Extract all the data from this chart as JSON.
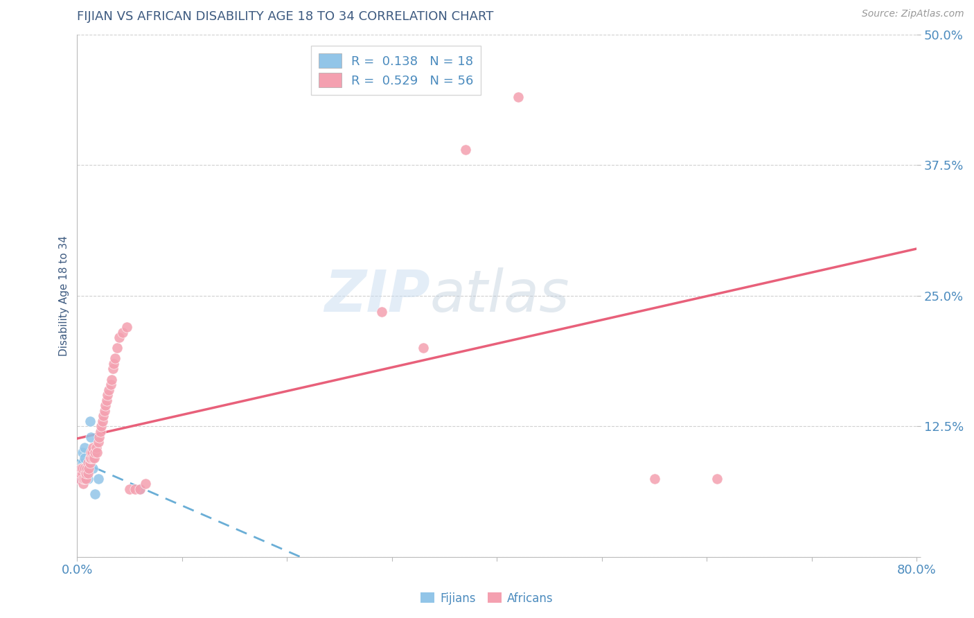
{
  "title": "FIJIAN VS AFRICAN DISABILITY AGE 18 TO 34 CORRELATION CHART",
  "source_text": "Source: ZipAtlas.com",
  "ylabel": "Disability Age 18 to 34",
  "xlim": [
    0.0,
    0.8
  ],
  "ylim": [
    0.0,
    0.5
  ],
  "yticks": [
    0.0,
    0.125,
    0.25,
    0.375,
    0.5
  ],
  "ytick_labels": [
    "",
    "12.5%",
    "25.0%",
    "37.5%",
    "50.0%"
  ],
  "legend_r_fijian": "R =  0.138",
  "legend_n_fijian": "N = 18",
  "legend_r_african": "R =  0.529",
  "legend_n_african": "N = 56",
  "fijian_color": "#92C5E8",
  "african_color": "#F4A0B0",
  "fijian_line_color": "#6AAED6",
  "african_line_color": "#E8607A",
  "title_color": "#3D5A80",
  "axis_label_color": "#3D5A80",
  "tick_label_color": "#4B8BBE",
  "grid_color": "#D0D0D0",
  "fijians_scatter_x": [
    0.002,
    0.003,
    0.004,
    0.005,
    0.005,
    0.006,
    0.007,
    0.007,
    0.008,
    0.009,
    0.01,
    0.011,
    0.012,
    0.013,
    0.015,
    0.017,
    0.02,
    0.06
  ],
  "fijians_scatter_y": [
    0.075,
    0.08,
    0.085,
    0.09,
    0.1,
    0.085,
    0.095,
    0.105,
    0.085,
    0.08,
    0.075,
    0.09,
    0.13,
    0.115,
    0.085,
    0.06,
    0.075,
    0.065
  ],
  "africans_scatter_x": [
    0.002,
    0.003,
    0.004,
    0.005,
    0.005,
    0.006,
    0.006,
    0.007,
    0.007,
    0.008,
    0.008,
    0.009,
    0.01,
    0.01,
    0.011,
    0.012,
    0.012,
    0.013,
    0.013,
    0.014,
    0.015,
    0.015,
    0.016,
    0.017,
    0.018,
    0.019,
    0.02,
    0.021,
    0.022,
    0.023,
    0.024,
    0.025,
    0.026,
    0.027,
    0.028,
    0.029,
    0.03,
    0.032,
    0.033,
    0.034,
    0.035,
    0.036,
    0.038,
    0.04,
    0.043,
    0.047,
    0.05,
    0.055,
    0.06,
    0.065,
    0.29,
    0.33,
    0.37,
    0.42,
    0.55,
    0.61
  ],
  "africans_scatter_y": [
    0.075,
    0.08,
    0.085,
    0.08,
    0.085,
    0.07,
    0.075,
    0.075,
    0.085,
    0.075,
    0.08,
    0.085,
    0.09,
    0.08,
    0.085,
    0.09,
    0.095,
    0.095,
    0.1,
    0.1,
    0.095,
    0.105,
    0.095,
    0.1,
    0.105,
    0.1,
    0.11,
    0.115,
    0.12,
    0.125,
    0.13,
    0.135,
    0.14,
    0.145,
    0.15,
    0.155,
    0.16,
    0.165,
    0.17,
    0.18,
    0.185,
    0.19,
    0.2,
    0.21,
    0.215,
    0.22,
    0.065,
    0.065,
    0.065,
    0.07,
    0.235,
    0.2,
    0.39,
    0.44,
    0.075,
    0.075
  ]
}
